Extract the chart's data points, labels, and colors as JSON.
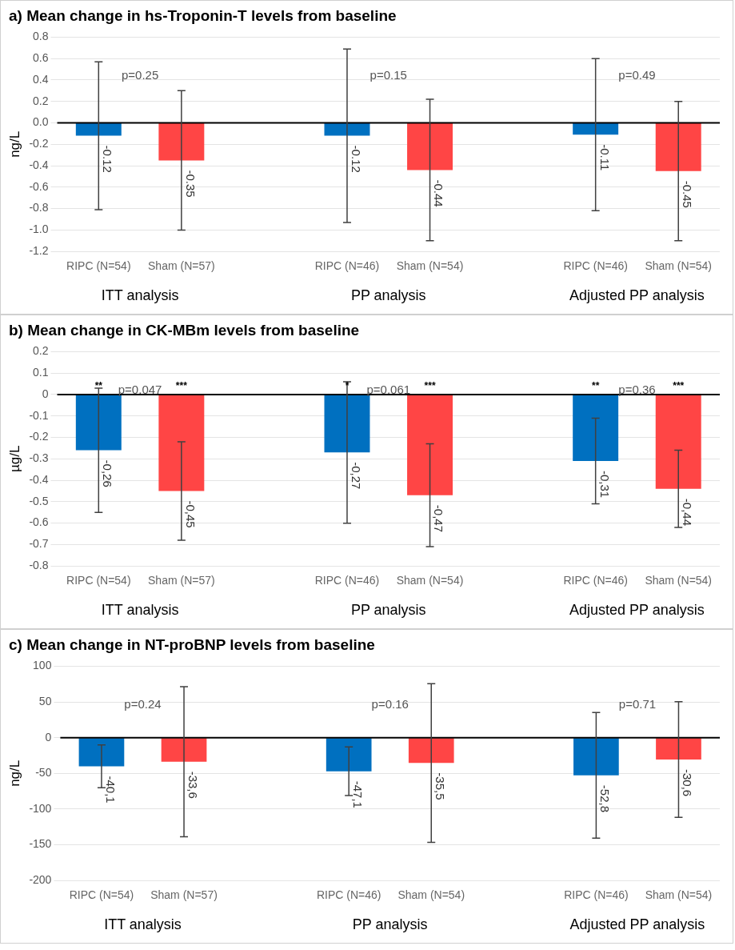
{
  "chart_data": [
    {
      "type": "bar",
      "title": "a) Mean change in hs-Troponin-T levels from baseline",
      "ylabel": "ng/L",
      "categories": [
        "RIPC (N=54)",
        "Sham (N=57)",
        null,
        "RIPC (N=46)",
        "Sham (N=54)",
        null,
        "RIPC (N=46)",
        "Sham (N=54)"
      ],
      "values": [
        -0.12,
        -0.35,
        null,
        -0.12,
        -0.44,
        null,
        -0.11,
        -0.45
      ],
      "colors": [
        "#0070c0",
        "#ff4545",
        null,
        "#0070c0",
        "#ff4545",
        null,
        "#0070c0",
        "#ff4545"
      ],
      "errors": [
        0.69,
        0.65,
        null,
        0.81,
        0.66,
        null,
        0.71,
        0.65
      ],
      "value_labels": [
        "-0.12",
        "-0.35",
        null,
        "-0.12",
        "-0.44",
        null,
        "-0.11",
        "-0.45"
      ],
      "ylim": [
        -1.2,
        0.8
      ],
      "yticks": [
        {
          "value": -1.2,
          "label": "-1.2"
        },
        {
          "value": -1,
          "label": "-1.0"
        },
        -0.8,
        -0.6,
        -0.4,
        -0.2,
        {
          "value": 0,
          "label": "0.0"
        },
        0.2,
        0.4,
        0.6,
        0.8
      ],
      "grid": "y",
      "annotations": [
        "p=0.25",
        "p=0.15",
        "p=0.49",
        "ITT analysis",
        "PP analysis",
        "Adjusted PP analysis"
      ]
    },
    {
      "type": "bar",
      "title": "b) Mean change in CK-MBm levels from baseline",
      "ylabel": "µg/L",
      "categories": [
        "RIPC (N=54)",
        "Sham (N=57)",
        null,
        "RIPC (N=46)",
        "Sham (N=54)",
        null,
        "RIPC (N=46)",
        "Sham (N=54)"
      ],
      "values": [
        -0.26,
        -0.45,
        null,
        -0.27,
        -0.47,
        null,
        -0.31,
        -0.44
      ],
      "colors": [
        "#0070c0",
        "#ff4545",
        null,
        "#0070c0",
        "#ff4545",
        null,
        "#0070c0",
        "#ff4545"
      ],
      "errors": [
        0.29,
        0.23,
        null,
        0.33,
        0.24,
        null,
        0.2,
        0.18
      ],
      "value_labels": [
        "-0,26",
        "-0,45",
        null,
        "-0,27",
        "-0,47",
        null,
        "-0,31",
        "-0,44"
      ],
      "ylim": [
        -0.8,
        0.2
      ],
      "yticks": [
        -0.8,
        -0.7,
        -0.6,
        -0.5,
        -0.4,
        -0.3,
        -0.2,
        -0.1,
        0,
        0.1,
        0.2
      ],
      "grid": "y",
      "annotations": [
        "p=0.047",
        "p=0.061",
        "p=0.36",
        "ITT analysis",
        "PP analysis",
        "Adjusted PP analysis",
        "**",
        "***",
        "*",
        "***",
        "**",
        "***"
      ]
    },
    {
      "type": "bar",
      "title": "c) Mean change in NT-proBNP levels from baseline",
      "ylabel": "ng/L",
      "categories": [
        "RIPC (N=54)",
        "Sham (N=57)",
        null,
        "RIPC (N=46)",
        "Sham (N=54)",
        null,
        "RIPC (N=46)",
        "Sham (N=54)"
      ],
      "values": [
        -40.1,
        -33.6,
        null,
        -47.1,
        -35.5,
        null,
        -52.8,
        -30.6
      ],
      "colors": [
        "#0070c0",
        "#ff4545",
        null,
        "#0070c0",
        "#ff4545",
        null,
        "#0070c0",
        "#ff4545"
      ],
      "errors": [
        30,
        105,
        null,
        34,
        111,
        null,
        88,
        81
      ],
      "value_labels": [
        "-40,1",
        "-33,6",
        null,
        "-47,1",
        "-35,5",
        null,
        "-52,8",
        "-30,6"
      ],
      "ylim": [
        -200,
        100
      ],
      "yticks": [
        -200,
        -150,
        -100,
        -50,
        0,
        50,
        100
      ],
      "grid": "y",
      "annotations": [
        "p=0.24",
        "p=0.16",
        "p=0.71",
        "ITT analysis",
        "PP analysis",
        "Adjusted PP analysis"
      ]
    }
  ]
}
